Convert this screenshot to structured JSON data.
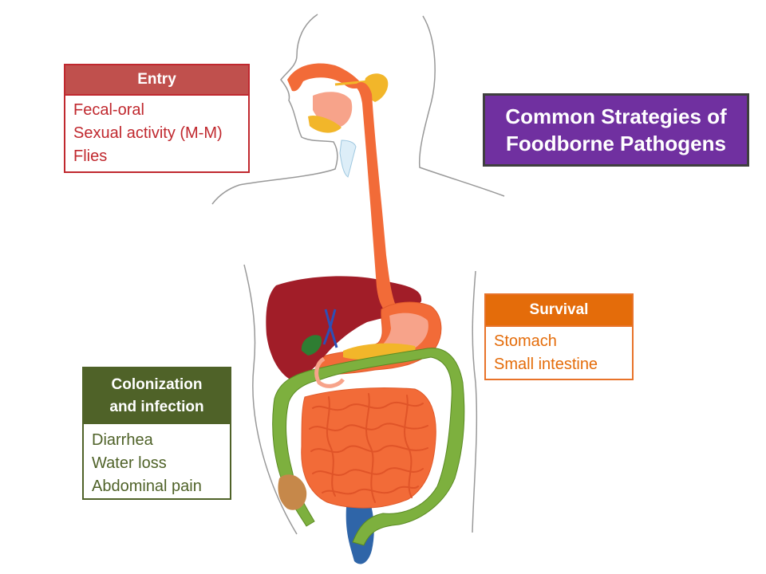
{
  "title": {
    "line1": "Common Strategies of",
    "line2": "Foodborne Pathogens",
    "color": "#7030a0"
  },
  "entry": {
    "header": "Entry",
    "items": [
      "Fecal-oral",
      "Sexual activity (M-M)",
      "Flies"
    ],
    "color": "#c0282e"
  },
  "survival": {
    "header": "Survival",
    "items": [
      "Stomach",
      "Small intestine"
    ],
    "color": "#e46c0a"
  },
  "colonization": {
    "header_line1": "Colonization",
    "header_line2": "and infection",
    "items": [
      "Diarrhea",
      "Water loss",
      "Abdominal pain"
    ],
    "color": "#4f6228"
  }
}
